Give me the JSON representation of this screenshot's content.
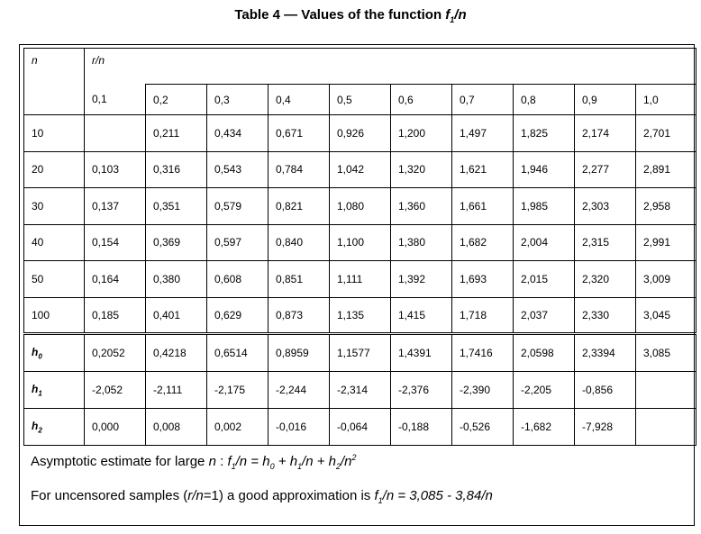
{
  "title_prefix": "Table 4 — Values of the function ",
  "title_func": "f",
  "title_func_sub": "1",
  "title_suffix": "/n",
  "header": {
    "n_label": "n",
    "rn_label": "r/n",
    "columns": [
      "0,1",
      "0,2",
      "0,3",
      "0,4",
      "0,5",
      "0,6",
      "0,7",
      "0,8",
      "0,9",
      "1,0"
    ]
  },
  "rows": [
    {
      "n": "10",
      "values": [
        "",
        "0,211",
        "0,434",
        "0,671",
        "0,926",
        "1,200",
        "1,497",
        "1,825",
        "2,174",
        "2,701"
      ]
    },
    {
      "n": "20",
      "values": [
        "0,103",
        "0,316",
        "0,543",
        "0,784",
        "1,042",
        "1,320",
        "1,621",
        "1,946",
        "2,277",
        "2,891"
      ]
    },
    {
      "n": "30",
      "values": [
        "0,137",
        "0,351",
        "0,579",
        "0,821",
        "1,080",
        "1,360",
        "1,661",
        "1,985",
        "2,303",
        "2,958"
      ]
    },
    {
      "n": "40",
      "values": [
        "0,154",
        "0,369",
        "0,597",
        "0,840",
        "1,100",
        "1,380",
        "1,682",
        "2,004",
        "2,315",
        "2,991"
      ]
    },
    {
      "n": "50",
      "values": [
        "0,164",
        "0,380",
        "0,608",
        "0,851",
        "1,111",
        "1,392",
        "1,693",
        "2,015",
        "2,320",
        "3,009"
      ]
    },
    {
      "n": "100",
      "values": [
        "0,185",
        "0,401",
        "0,629",
        "0,873",
        "1,135",
        "1,415",
        "1,718",
        "2,037",
        "2,330",
        "3,045"
      ]
    }
  ],
  "h_rows": [
    {
      "label": "h",
      "sub": "0",
      "values": [
        "0,2052",
        "0,4218",
        "0,6514",
        "0,8959",
        "1,1577",
        "1,4391",
        "1,7416",
        "2,0598",
        "2,3394",
        "3,085"
      ]
    },
    {
      "label": "h",
      "sub": "1",
      "values": [
        "-2,052",
        "-2,111",
        "-2,175",
        "-2,244",
        "-2,314",
        "-2,376",
        "-2,390",
        "-2,205",
        "-0,856",
        ""
      ]
    },
    {
      "label": "h",
      "sub": "2",
      "values": [
        "0,000",
        "0,008",
        "0,002",
        "-0,016",
        "-0,064",
        "-0,188",
        "-0,526",
        "-1,682",
        "-7,928",
        ""
      ]
    }
  ],
  "footnote1": {
    "prefix": "Asymptotic estimate for large ",
    "n": "n",
    "colon": " : ",
    "formula": "f1/n = h0 + h1/n + h2/n2"
  },
  "footnote2": {
    "prefix": "For uncensored samples (",
    "rn": "r/n",
    "mid": "=1) a good approximation is ",
    "formula": "f1/n = 3,085 - 3,84/n"
  }
}
